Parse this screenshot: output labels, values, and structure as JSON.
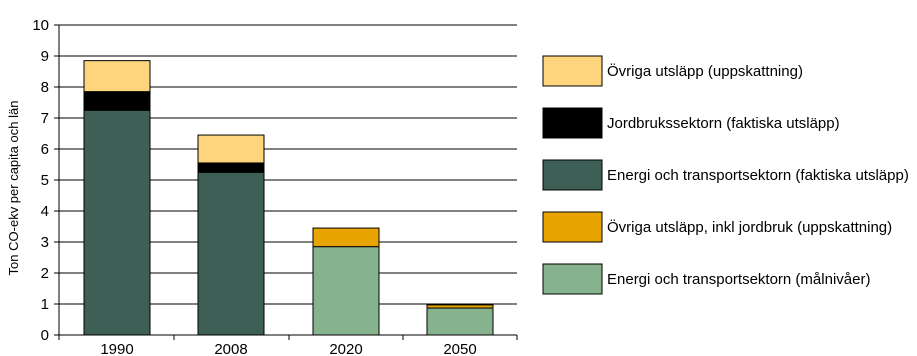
{
  "chart_data": {
    "type": "bar",
    "stacked": true,
    "title": "",
    "xlabel": "",
    "ylabel": "Ton CO-ekv per capita och län",
    "ylim": [
      0,
      10
    ],
    "yticks": [
      0,
      1,
      2,
      3,
      4,
      5,
      6,
      7,
      8,
      9,
      10
    ],
    "grid": true,
    "legend_position": "right",
    "categories": [
      "1990",
      "2008",
      "2020",
      "2050"
    ],
    "series": [
      {
        "name": "Energi och transportsektorn (faktiska utsläpp)",
        "color": "#3d5f55",
        "values": [
          7.25,
          5.25,
          0,
          0
        ]
      },
      {
        "name": "Energi och transportsektorn (målnivåer)",
        "color": "#86b38e",
        "values": [
          0,
          0,
          2.85,
          0.87
        ]
      },
      {
        "name": "Jordbrukssektorn (faktiska utsläpp)",
        "color": "#000000",
        "values": [
          0.6,
          0.3,
          0,
          0
        ]
      },
      {
        "name": "Övriga utsläpp, inkl jordbruk (uppskattning)",
        "color": "#e8a400",
        "values": [
          0,
          0,
          0.6,
          0.1
        ]
      },
      {
        "name": "Övriga utsläpp (uppskattning)",
        "color": "#fed57c",
        "values": [
          1.0,
          0.9,
          0,
          0
        ]
      }
    ],
    "legend": [
      {
        "label": "Övriga utsläpp (uppskattning)",
        "color": "#fed57c"
      },
      {
        "label": "Jordbrukssektorn (faktiska utsläpp)",
        "color": "#000000"
      },
      {
        "label": "Energi och transportsektorn (faktiska utsläpp)",
        "color": "#3d5f55"
      },
      {
        "label": "Övriga utsläpp, inkl jordbruk (uppskattning)",
        "color": "#e8a400"
      },
      {
        "label": "Energi och transportsektorn (målnivåer)",
        "color": "#86b38e"
      }
    ]
  }
}
